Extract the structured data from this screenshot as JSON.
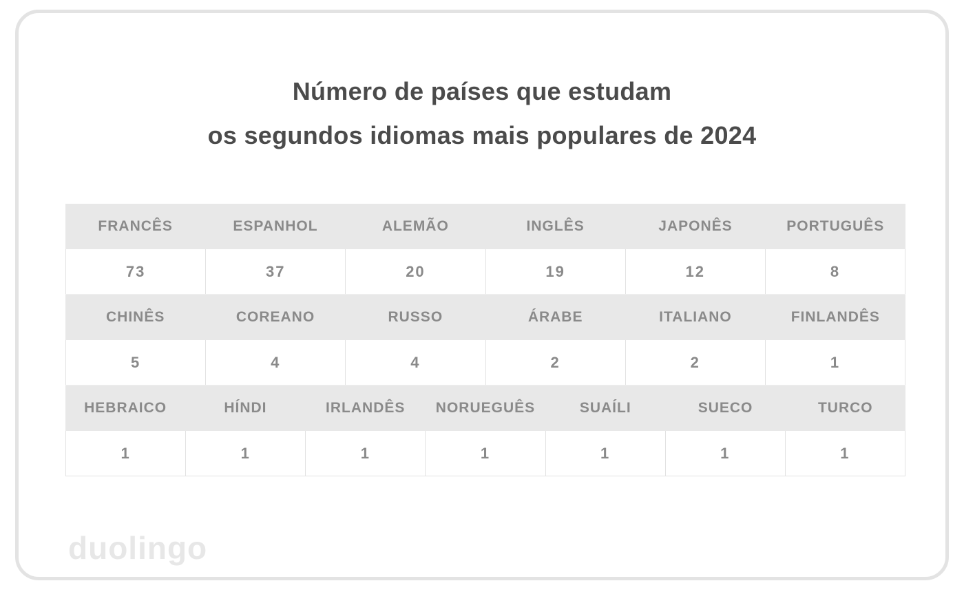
{
  "title": {
    "line1": "Número de países que estudam",
    "line2": "os segundos idiomas mais populares de 2024"
  },
  "chart_data": {
    "type": "table",
    "title": "Número de países que estudam os segundos idiomas mais populares de 2024",
    "groups": [
      {
        "languages": [
          "FRANCÊS",
          "ESPANHOL",
          "ALEMÃO",
          "INGLÊS",
          "JAPONÊS",
          "PORTUGUÊS"
        ],
        "values": [
          73,
          37,
          20,
          19,
          12,
          8
        ]
      },
      {
        "languages": [
          "CHINÊS",
          "COREANO",
          "RUSSO",
          "ÁRABE",
          "ITALIANO",
          "FINLANDÊS"
        ],
        "values": [
          5,
          4,
          4,
          2,
          2,
          1
        ]
      },
      {
        "languages": [
          "HEBRAICO",
          "HÍNDI",
          "IRLANDÊS",
          "NORUEGUÊS",
          "SUAÍLI",
          "SUECO",
          "TURCO"
        ],
        "values": [
          1,
          1,
          1,
          1,
          1,
          1,
          1
        ]
      }
    ]
  },
  "branding": {
    "logo_text": "duolingo"
  },
  "colors": {
    "title_text": "#4b4b4b",
    "table_text": "#8a8a8a",
    "header_row_bg": "#e8e8e8",
    "cell_border": "#e2e2e2",
    "card_border": "#e3e3e3",
    "logo_text": "#e7e7e7"
  }
}
